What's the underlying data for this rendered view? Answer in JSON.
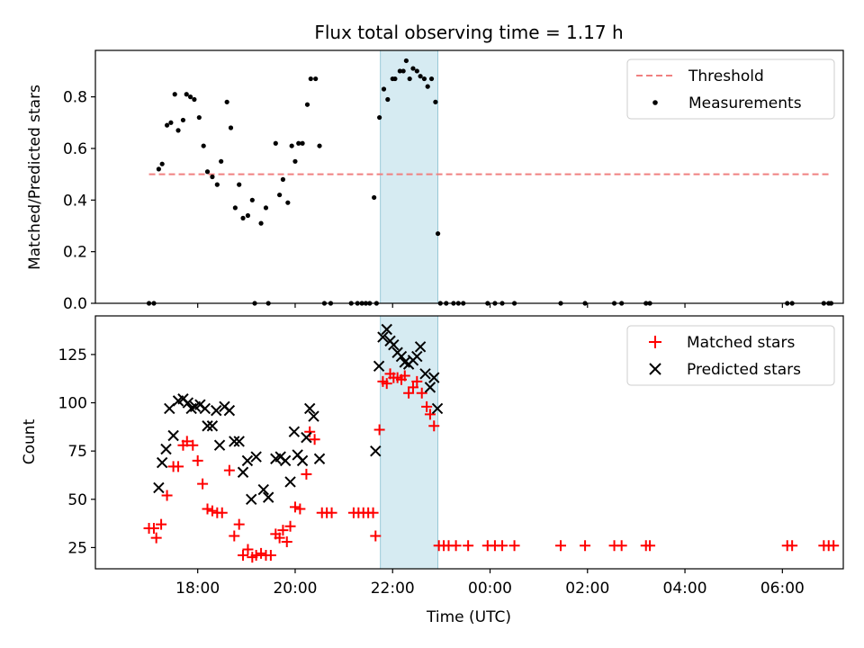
{
  "chart_data": [
    {
      "type": "scatter",
      "title": "Flux total observing time = 1.17 h",
      "xlabel": "",
      "ylabel": "Matched/Predicted stars",
      "x_unit": "hours since 00:00 of observing night day 1 (UTC)",
      "xlim": [
        15.9,
        31.25
      ],
      "ylim": [
        0,
        0.98
      ],
      "y_ticks": [
        "0.0",
        "0.2",
        "0.4",
        "0.6",
        "0.8"
      ],
      "y_tick_values": [
        0,
        0.2,
        0.4,
        0.6,
        0.8
      ],
      "shaded_interval": [
        21.75,
        22.93
      ],
      "legend_position": "top-right",
      "series": [
        {
          "name": "Threshold",
          "kind": "dashed-line",
          "color": "#f08080",
          "x": [
            17.0,
            31.0
          ],
          "y": [
            0.5,
            0.5
          ]
        },
        {
          "name": "Measurements",
          "kind": "dots",
          "color": "#000000",
          "points": [
            [
              17.0,
              0.0
            ],
            [
              17.1,
              0.0
            ],
            [
              17.2,
              0.52
            ],
            [
              17.27,
              0.54
            ],
            [
              17.37,
              0.69
            ],
            [
              17.45,
              0.7
            ],
            [
              17.53,
              0.81
            ],
            [
              17.6,
              0.67
            ],
            [
              17.7,
              0.71
            ],
            [
              17.77,
              0.81
            ],
            [
              17.85,
              0.8
            ],
            [
              17.93,
              0.79
            ],
            [
              18.03,
              0.72
            ],
            [
              18.12,
              0.61
            ],
            [
              18.2,
              0.51
            ],
            [
              18.3,
              0.49
            ],
            [
              18.4,
              0.46
            ],
            [
              18.48,
              0.55
            ],
            [
              18.6,
              0.78
            ],
            [
              18.68,
              0.68
            ],
            [
              18.77,
              0.37
            ],
            [
              18.85,
              0.46
            ],
            [
              18.93,
              0.33
            ],
            [
              19.03,
              0.34
            ],
            [
              19.12,
              0.4
            ],
            [
              19.17,
              0.0
            ],
            [
              19.3,
              0.31
            ],
            [
              19.4,
              0.37
            ],
            [
              19.45,
              0.0
            ],
            [
              19.6,
              0.62
            ],
            [
              19.68,
              0.42
            ],
            [
              19.75,
              0.48
            ],
            [
              19.85,
              0.39
            ],
            [
              19.93,
              0.61
            ],
            [
              20.0,
              0.55
            ],
            [
              20.07,
              0.62
            ],
            [
              20.15,
              0.62
            ],
            [
              20.25,
              0.77
            ],
            [
              20.32,
              0.87
            ],
            [
              20.42,
              0.87
            ],
            [
              20.5,
              0.61
            ],
            [
              20.6,
              0.0
            ],
            [
              20.73,
              0.0
            ],
            [
              21.15,
              0.0
            ],
            [
              21.28,
              0.0
            ],
            [
              21.37,
              0.0
            ],
            [
              21.45,
              0.0
            ],
            [
              21.53,
              0.0
            ],
            [
              21.62,
              0.41
            ],
            [
              21.67,
              0.0
            ],
            [
              21.73,
              0.72
            ],
            [
              21.82,
              0.83
            ],
            [
              21.9,
              0.79
            ],
            [
              22.0,
              0.87
            ],
            [
              22.05,
              0.87
            ],
            [
              22.15,
              0.9
            ],
            [
              22.22,
              0.9
            ],
            [
              22.28,
              0.94
            ],
            [
              22.35,
              0.87
            ],
            [
              22.42,
              0.91
            ],
            [
              22.5,
              0.9
            ],
            [
              22.57,
              0.88
            ],
            [
              22.65,
              0.87
            ],
            [
              22.72,
              0.84
            ],
            [
              22.8,
              0.87
            ],
            [
              22.88,
              0.78
            ],
            [
              22.93,
              0.27
            ],
            [
              22.98,
              0.0
            ],
            [
              23.1,
              0.0
            ],
            [
              23.25,
              0.0
            ],
            [
              23.35,
              0.0
            ],
            [
              23.45,
              0.0
            ],
            [
              23.95,
              0.0
            ],
            [
              24.1,
              0.0
            ],
            [
              24.25,
              0.0
            ],
            [
              24.5,
              0.0
            ],
            [
              25.45,
              0.0
            ],
            [
              25.95,
              0.0
            ],
            [
              26.55,
              0.0
            ],
            [
              26.7,
              0.0
            ],
            [
              27.2,
              0.0
            ],
            [
              27.28,
              0.0
            ],
            [
              30.1,
              0.0
            ],
            [
              30.2,
              0.0
            ],
            [
              30.85,
              0.0
            ],
            [
              30.95,
              0.0
            ],
            [
              31.0,
              0.0
            ]
          ]
        }
      ]
    },
    {
      "type": "scatter",
      "title": "",
      "xlabel": "Time (UTC)",
      "ylabel": "Count",
      "x_unit": "hours since 00:00 of observing night day 1 (UTC)",
      "xlim": [
        15.9,
        31.25
      ],
      "ylim": [
        14,
        145
      ],
      "y_ticks": [
        "25",
        "50",
        "75",
        "100",
        "125"
      ],
      "y_tick_values": [
        25,
        50,
        75,
        100,
        125
      ],
      "x_ticks": [
        "18:00",
        "20:00",
        "22:00",
        "00:00",
        "02:00",
        "04:00",
        "06:00"
      ],
      "x_tick_values": [
        18,
        20,
        22,
        24,
        26,
        28,
        30
      ],
      "shaded_interval": [
        21.75,
        22.93
      ],
      "legend_position": "top-right",
      "series": [
        {
          "name": "Matched stars",
          "marker": "plus",
          "color": "#ff0000",
          "points": [
            [
              17.0,
              35
            ],
            [
              17.1,
              35
            ],
            [
              17.15,
              30
            ],
            [
              17.25,
              37
            ],
            [
              17.37,
              52
            ],
            [
              17.5,
              67
            ],
            [
              17.6,
              67
            ],
            [
              17.7,
              78
            ],
            [
              17.78,
              80
            ],
            [
              17.9,
              78
            ],
            [
              18.0,
              70
            ],
            [
              18.1,
              58
            ],
            [
              18.2,
              45
            ],
            [
              18.3,
              44
            ],
            [
              18.4,
              43
            ],
            [
              18.5,
              43
            ],
            [
              18.65,
              65
            ],
            [
              18.75,
              31
            ],
            [
              18.85,
              37
            ],
            [
              18.93,
              21
            ],
            [
              19.03,
              24
            ],
            [
              19.12,
              20
            ],
            [
              19.2,
              21
            ],
            [
              19.3,
              22
            ],
            [
              19.4,
              21
            ],
            [
              19.5,
              21
            ],
            [
              19.6,
              32
            ],
            [
              19.68,
              30
            ],
            [
              19.75,
              34
            ],
            [
              19.83,
              28
            ],
            [
              19.9,
              36
            ],
            [
              20.0,
              46
            ],
            [
              20.1,
              45
            ],
            [
              20.23,
              63
            ],
            [
              20.3,
              85
            ],
            [
              20.4,
              81
            ],
            [
              20.55,
              43
            ],
            [
              20.65,
              43
            ],
            [
              20.75,
              43
            ],
            [
              21.2,
              43
            ],
            [
              21.3,
              43
            ],
            [
              21.4,
              43
            ],
            [
              21.5,
              43
            ],
            [
              21.6,
              43
            ],
            [
              21.65,
              31
            ],
            [
              21.73,
              86
            ],
            [
              21.8,
              111
            ],
            [
              21.88,
              110
            ],
            [
              21.95,
              115
            ],
            [
              22.02,
              113
            ],
            [
              22.1,
              113
            ],
            [
              22.18,
              112
            ],
            [
              22.25,
              114
            ],
            [
              22.33,
              105
            ],
            [
              22.42,
              108
            ],
            [
              22.5,
              111
            ],
            [
              22.6,
              105
            ],
            [
              22.7,
              98
            ],
            [
              22.77,
              94
            ],
            [
              22.85,
              88
            ],
            [
              22.95,
              26
            ],
            [
              23.05,
              26
            ],
            [
              23.15,
              26
            ],
            [
              23.3,
              26
            ],
            [
              23.55,
              26
            ],
            [
              23.95,
              26
            ],
            [
              24.1,
              26
            ],
            [
              24.25,
              26
            ],
            [
              24.5,
              26
            ],
            [
              25.45,
              26
            ],
            [
              25.95,
              26
            ],
            [
              26.55,
              26
            ],
            [
              26.7,
              26
            ],
            [
              27.2,
              26
            ],
            [
              27.28,
              26
            ],
            [
              30.1,
              26
            ],
            [
              30.2,
              26
            ],
            [
              30.85,
              26
            ],
            [
              30.95,
              26
            ],
            [
              31.05,
              26
            ]
          ]
        },
        {
          "name": "Predicted stars",
          "marker": "cross",
          "color": "#000000",
          "points": [
            [
              17.2,
              56
            ],
            [
              17.27,
              69
            ],
            [
              17.35,
              76
            ],
            [
              17.42,
              97
            ],
            [
              17.5,
              83
            ],
            [
              17.6,
              101
            ],
            [
              17.7,
              102
            ],
            [
              17.8,
              100
            ],
            [
              17.87,
              97
            ],
            [
              17.95,
              98
            ],
            [
              18.05,
              99
            ],
            [
              18.15,
              97
            ],
            [
              18.2,
              88
            ],
            [
              18.3,
              88
            ],
            [
              18.38,
              96
            ],
            [
              18.45,
              78
            ],
            [
              18.55,
              98
            ],
            [
              18.65,
              96
            ],
            [
              18.75,
              80
            ],
            [
              18.85,
              80
            ],
            [
              18.93,
              64
            ],
            [
              19.02,
              70
            ],
            [
              19.1,
              50
            ],
            [
              19.2,
              72
            ],
            [
              19.35,
              55
            ],
            [
              19.45,
              51
            ],
            [
              19.6,
              71
            ],
            [
              19.7,
              72
            ],
            [
              19.8,
              70
            ],
            [
              19.9,
              59
            ],
            [
              19.98,
              85
            ],
            [
              20.05,
              73
            ],
            [
              20.15,
              70
            ],
            [
              20.23,
              82
            ],
            [
              20.3,
              97
            ],
            [
              20.38,
              93
            ],
            [
              20.5,
              71
            ],
            [
              21.65,
              75
            ],
            [
              21.72,
              119
            ],
            [
              21.8,
              134
            ],
            [
              21.88,
              138
            ],
            [
              21.95,
              132
            ],
            [
              22.02,
              130
            ],
            [
              22.1,
              126
            ],
            [
              22.18,
              124
            ],
            [
              22.25,
              121
            ],
            [
              22.33,
              120
            ],
            [
              22.42,
              122
            ],
            [
              22.5,
              124
            ],
            [
              22.57,
              129
            ],
            [
              22.67,
              115
            ],
            [
              22.77,
              108
            ],
            [
              22.85,
              113
            ],
            [
              22.92,
              97
            ]
          ]
        }
      ]
    }
  ]
}
